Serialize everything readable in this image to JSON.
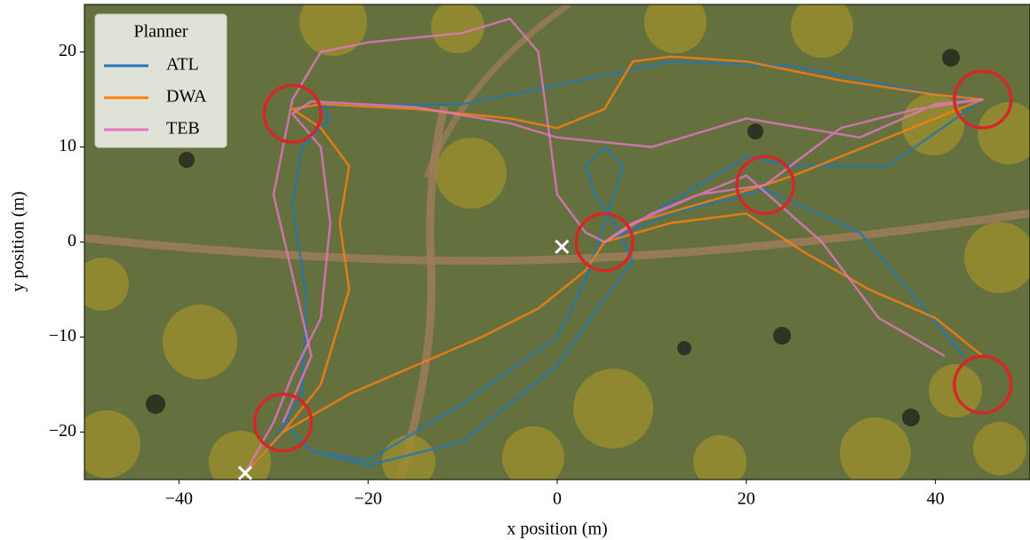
{
  "chart_data": {
    "type": "trajectory",
    "xlabel": "x position (m)",
    "ylabel": "y position (m)",
    "xlim": [
      -50,
      50
    ],
    "ylim": [
      -25,
      25
    ],
    "xticks": [
      {
        "value": -40,
        "label": "−40"
      },
      {
        "value": -20,
        "label": "−20"
      },
      0,
      20,
      40
    ],
    "yticks": [
      {
        "value": -20,
        "label": "−20"
      },
      {
        "value": -10,
        "label": "−10"
      },
      0,
      10,
      20
    ],
    "legend_title": "Planner",
    "legend": "upper left",
    "series": [
      {
        "name": "ATL",
        "color": "#1f77b4",
        "runs": [
          {
            "x": [
              -33,
              -30,
              -27,
              -26.5,
              -28,
              -27,
              -24,
              -25,
              -10,
              0,
              12,
              25,
              35,
              42,
              45,
              35,
              25,
              20,
              10,
              5,
              12,
              22,
              32,
              38,
              43
            ],
            "values": [
              -24.3,
              -21,
              -16,
              -6,
              4,
              10,
              13,
              14.3,
              14.5,
              16.5,
              19,
              18.5,
              16.5,
              15.2,
              15,
              8,
              8,
              9,
              3,
              0,
              3,
              5.5,
              1,
              -6,
              -12
            ]
          },
          {
            "x": [
              -29,
              -26,
              -20,
              -10,
              0,
              5,
              8,
              6,
              4,
              3,
              5,
              7,
              3,
              0,
              -10,
              -20,
              -26,
              -29
            ],
            "values": [
              -19,
              -22,
              -23.5,
              -21,
              -13,
              -6,
              -2,
              2,
              5,
              8,
              10,
              8,
              -4,
              -10,
              -17,
              -23,
              -22,
              -19
            ]
          }
        ]
      },
      {
        "name": "DWA",
        "color": "#ff7f0e",
        "runs": [
          {
            "x": [
              -33,
              -29,
              -25,
              -22,
              -23,
              -22,
              -25,
              -28,
              -25,
              -15,
              -5,
              0,
              5,
              8,
              12,
              20,
              30,
              40,
              45,
              35,
              25,
              22,
              15,
              8,
              5,
              12,
              20,
              26,
              33,
              40,
              45
            ],
            "values": [
              -24.3,
              -20,
              -15,
              -5,
              2,
              8,
              12,
              14,
              14.5,
              14,
              13,
              12,
              14,
              19,
              19.5,
              19,
              17,
              15.5,
              15,
              11,
              7,
              6,
              4,
              2,
              0,
              2,
              3,
              -1,
              -5,
              -8,
              -12
            ]
          },
          {
            "x": [
              -29,
              -22,
              -15,
              -8,
              -2,
              3,
              5
            ],
            "values": [
              -20,
              -16,
              -13,
              -10,
              -7,
              -3,
              0
            ]
          }
        ]
      },
      {
        "name": "TEB",
        "color": "#e377c2",
        "runs": [
          {
            "x": [
              -33,
              -30,
              -28,
              -25,
              -24,
              -25,
              -28,
              -26,
              -15,
              -5,
              0,
              10,
              20,
              32,
              40,
              45,
              38,
              30,
              22,
              15,
              8,
              5,
              10,
              20,
              28,
              34,
              41
            ],
            "values": [
              -24.3,
              -19,
              -14,
              -8,
              2,
              10,
              13.5,
              14.8,
              14.2,
              12.5,
              11,
              10,
              13,
              11,
              14.5,
              15,
              14,
              12,
              6,
              5,
              2,
              0,
              3,
              7,
              0,
              -8,
              -12
            ]
          },
          {
            "x": [
              -29,
              -26,
              -30,
              -28,
              -25,
              -20,
              -10,
              -5,
              -2,
              0,
              3,
              5
            ],
            "values": [
              -19,
              -12,
              5,
              15,
              20,
              21,
              22,
              23.5,
              20,
              5,
              1,
              0
            ]
          }
        ]
      }
    ],
    "waypoints": {
      "color": "#d62728",
      "radius": 3,
      "x": [
        -28,
        45,
        22,
        5,
        45,
        -29
      ],
      "y": [
        13.5,
        15,
        6,
        0,
        -15,
        -19
      ]
    },
    "markers": {
      "color": "#ffffff",
      "x": [
        0.5,
        -33
      ],
      "y": [
        -0.5,
        -24.3
      ]
    }
  }
}
